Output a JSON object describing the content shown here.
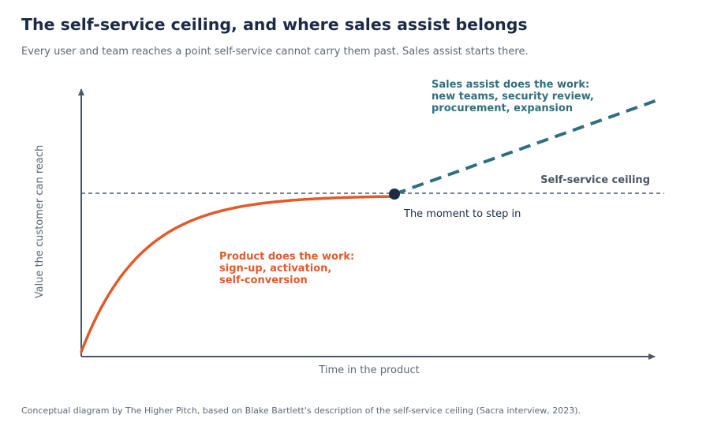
{
  "title": "The self-service ceiling, and where sales assist belongs",
  "subtitle": "Every user and team reaches a point self-service cannot carry them past. Sales assist starts there.",
  "footer": "Conceptual diagram by The Higher Pitch, based on Blake Bartlett's description of the self-service ceiling (Sacra interview, 2023).",
  "diagram": {
    "y_axis_label": "Value the customer can reach",
    "x_axis_label": "Time in the product",
    "ceiling_label": "Self-service ceiling",
    "marker_label": "The moment to step in",
    "product_label": [
      "Product does the work:",
      "sign-up, activation,",
      "self-conversion"
    ],
    "sales_label": [
      "Sales assist does the work:",
      "new teams, security review,",
      "procurement, expansion"
    ],
    "colors": {
      "product": "#e05a2b",
      "sales": "#2f6f7e",
      "ceiling": "#4a5666",
      "axis": "#4a5666",
      "marker": "#1c2b45",
      "title": "#1c2b45",
      "muted": "#5d6775"
    }
  }
}
